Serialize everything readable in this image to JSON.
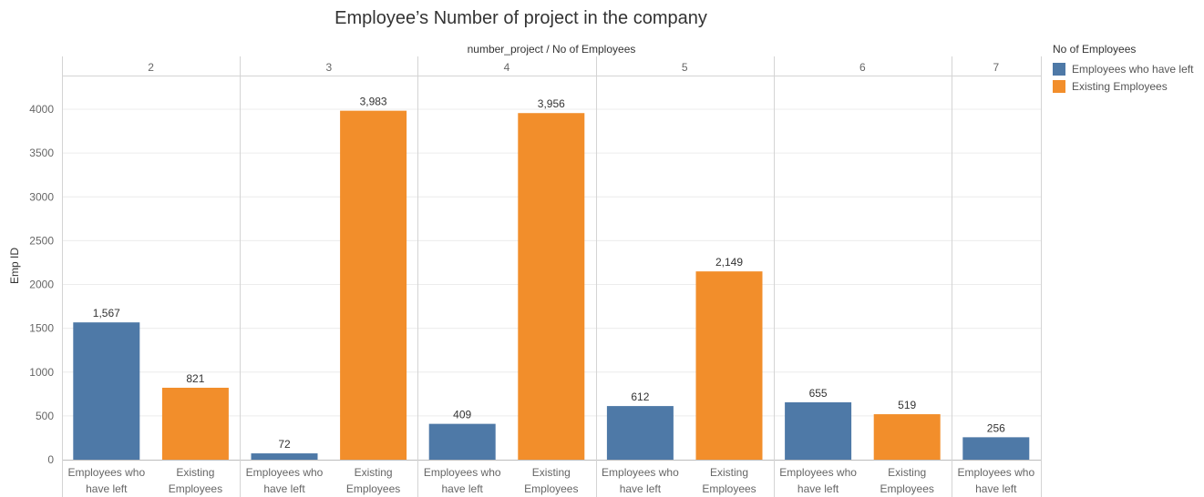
{
  "chart_data": {
    "type": "bar",
    "title": "Employee’s Number of project in the company",
    "header_label": "number_project  /  No of Employees",
    "ylabel": "Emp ID",
    "ylim": [
      0,
      4400
    ],
    "yticks": [
      0,
      500,
      1000,
      1500,
      2000,
      2500,
      3000,
      3500,
      4000
    ],
    "groups": [
      {
        "label": "2",
        "bars": [
          {
            "category": "Employees who have left",
            "cat_lines": [
              "Employees who",
              "have left"
            ],
            "value": 1567,
            "label": "1,567"
          },
          {
            "category": "Existing Employees",
            "cat_lines": [
              "Existing",
              "Employees"
            ],
            "value": 821,
            "label": "821"
          }
        ]
      },
      {
        "label": "3",
        "bars": [
          {
            "category": "Employees who have left",
            "cat_lines": [
              "Employees who",
              "have left"
            ],
            "value": 72,
            "label": "72"
          },
          {
            "category": "Existing Employees",
            "cat_lines": [
              "Existing",
              "Employees"
            ],
            "value": 3983,
            "label": "3,983"
          }
        ]
      },
      {
        "label": "4",
        "bars": [
          {
            "category": "Employees who have left",
            "cat_lines": [
              "Employees who",
              "have left"
            ],
            "value": 409,
            "label": "409"
          },
          {
            "category": "Existing Employees",
            "cat_lines": [
              "Existing",
              "Employees"
            ],
            "value": 3956,
            "label": "3,956"
          }
        ]
      },
      {
        "label": "5",
        "bars": [
          {
            "category": "Employees who have left",
            "cat_lines": [
              "Employees who",
              "have left"
            ],
            "value": 612,
            "label": "612"
          },
          {
            "category": "Existing Employees",
            "cat_lines": [
              "Existing",
              "Employees"
            ],
            "value": 2149,
            "label": "2,149"
          }
        ]
      },
      {
        "label": "6",
        "bars": [
          {
            "category": "Employees who have left",
            "cat_lines": [
              "Employees who",
              "have left"
            ],
            "value": 655,
            "label": "655"
          },
          {
            "category": "Existing Employees",
            "cat_lines": [
              "Existing",
              "Employees"
            ],
            "value": 519,
            "label": "519"
          }
        ]
      },
      {
        "label": "7",
        "bars": [
          {
            "category": "Employees who have left",
            "cat_lines": [
              "Employees who",
              "have left"
            ],
            "value": 256,
            "label": "256"
          }
        ]
      }
    ],
    "legend": {
      "title": "No of Employees",
      "position": "top-right",
      "items": [
        {
          "name": "Employees who have left",
          "color": "#4e79a7"
        },
        {
          "name": "Existing Employees",
          "color": "#f28e2b"
        }
      ]
    },
    "grid": true
  }
}
